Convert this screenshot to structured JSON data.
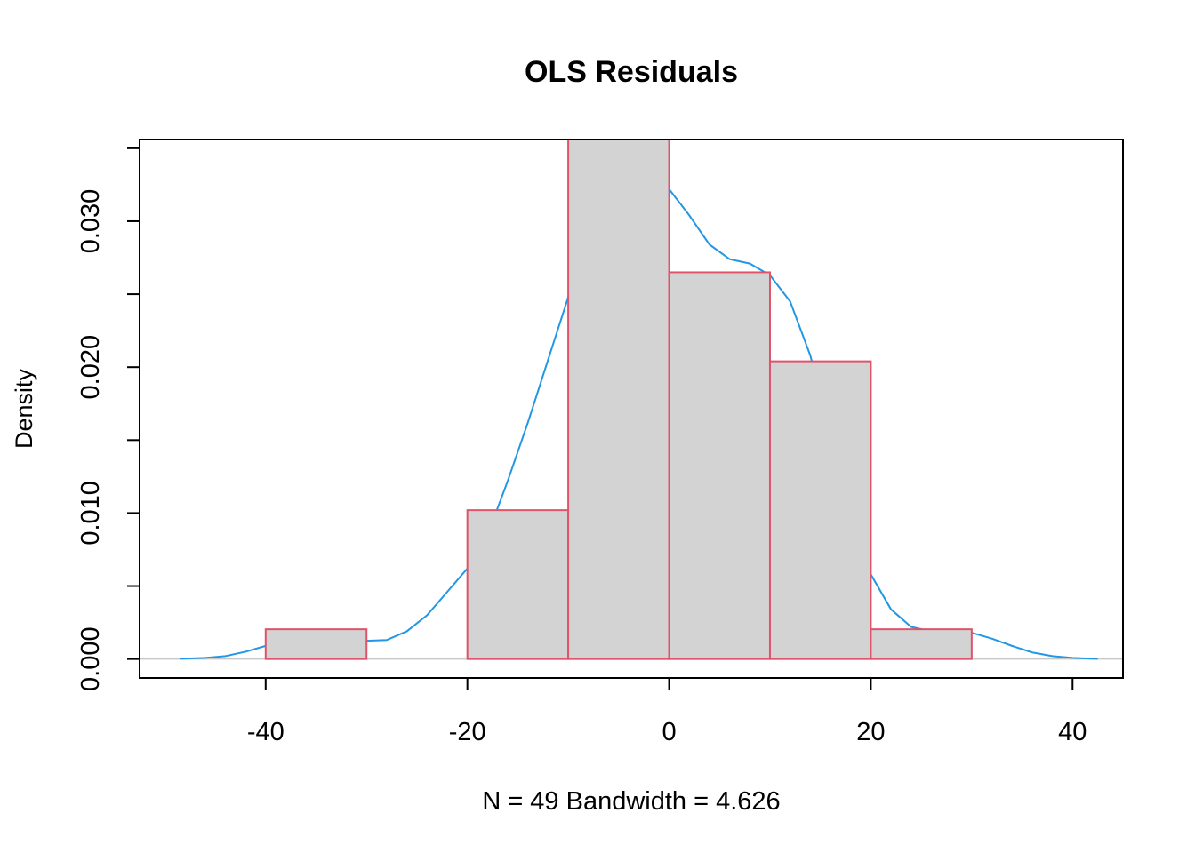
{
  "chart_data": {
    "type": "bar",
    "subtype": "histogram-with-density",
    "title": "OLS Residuals",
    "xlabel": "N = 49   Bandwidth = 4.626",
    "ylabel": "Density",
    "xlim": [
      -52.5,
      45
    ],
    "ylim": [
      -0.0013,
      0.0356
    ],
    "x_ticks": [
      -40,
      -20,
      0,
      20,
      40
    ],
    "x_tick_labels": [
      "-40",
      "-20",
      "0",
      "20",
      "40"
    ],
    "y_ticks": [
      0,
      0.005,
      0.01,
      0.015,
      0.02,
      0.025,
      0.03,
      0.035
    ],
    "y_tick_labels": [
      "0.000",
      "",
      "0.010",
      "",
      "0.020",
      "",
      "0.030",
      ""
    ],
    "bins": [
      {
        "from": -40,
        "to": -30,
        "density": 0.00204
      },
      {
        "from": -30,
        "to": -20,
        "density": 0.0
      },
      {
        "from": -20,
        "to": -10,
        "density": 0.0102
      },
      {
        "from": -10,
        "to": 0,
        "density": 0.0357
      },
      {
        "from": 0,
        "to": 10,
        "density": 0.0265
      },
      {
        "from": 10,
        "to": 20,
        "density": 0.0204
      },
      {
        "from": 20,
        "to": 30,
        "density": 0.00204
      }
    ],
    "density_curve": {
      "x": [
        -48.5,
        -46,
        -44,
        -42,
        -40,
        -38,
        -36,
        -34,
        -32,
        -30,
        -28,
        -26,
        -24,
        -22,
        -20,
        -18,
        -16,
        -14,
        -12,
        -10,
        -8,
        -6,
        -4,
        -2,
        0,
        2,
        4,
        6,
        8,
        10,
        12,
        14,
        16,
        18,
        20,
        22,
        24,
        26,
        28,
        30,
        32,
        34,
        36,
        38,
        40,
        42.5
      ],
      "y": [
        2e-05,
        8e-05,
        0.0002,
        0.0005,
        0.0009,
        0.0013,
        0.00145,
        0.00148,
        0.0014,
        0.00125,
        0.0013,
        0.0019,
        0.003,
        0.0046,
        0.0062,
        0.0085,
        0.0122,
        0.0162,
        0.0205,
        0.0248,
        0.0283,
        0.0308,
        0.0322,
        0.0326,
        0.0322,
        0.0304,
        0.0284,
        0.0274,
        0.0271,
        0.0263,
        0.0245,
        0.0208,
        0.0153,
        0.0097,
        0.0058,
        0.0034,
        0.0022,
        0.0019,
        0.0019,
        0.0018,
        0.0014,
        0.0009,
        0.00045,
        0.0002,
        8e-05,
        1e-05
      ]
    },
    "colors": {
      "bar_fill": "#d3d3d3",
      "bar_border": "#df536b",
      "density_line": "#2297e6",
      "zero_line": "#c8c8c8",
      "axis": "#000000"
    },
    "grid": false,
    "legend": "none"
  }
}
